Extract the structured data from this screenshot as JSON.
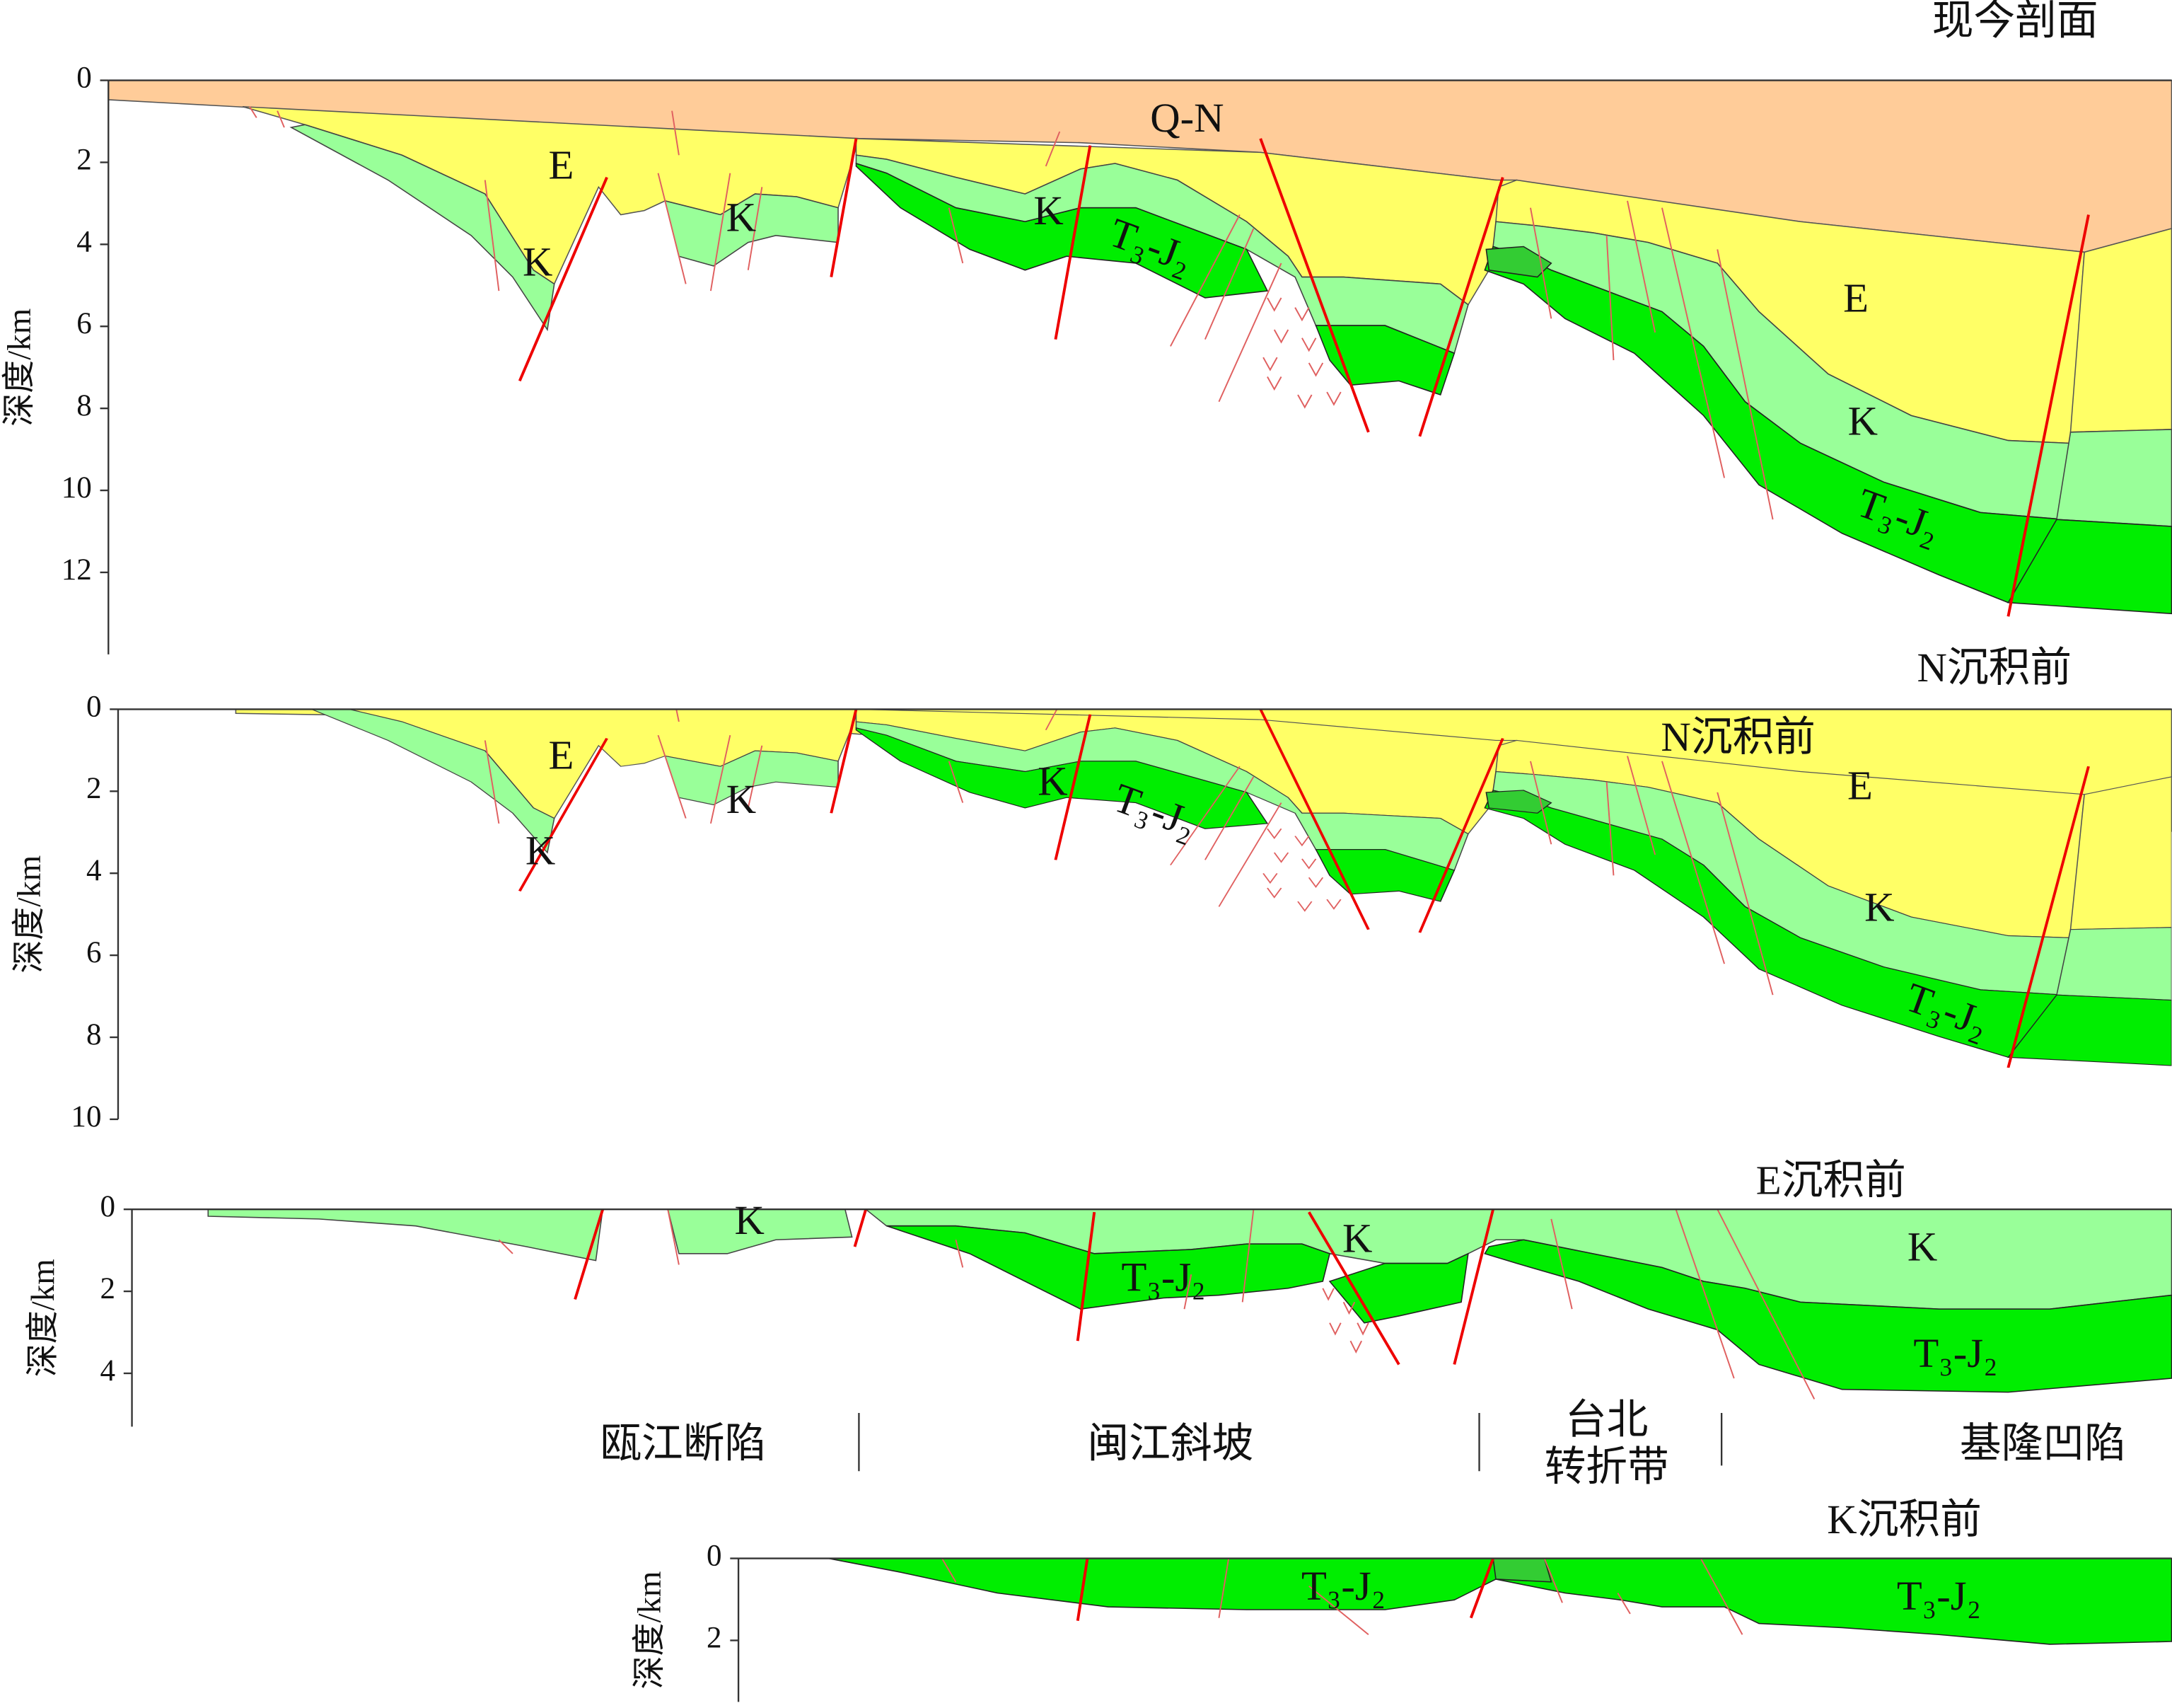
{
  "panels": [
    {
      "title": "现今剖面",
      "y_label": "深度/km",
      "ylim": [
        0,
        14
      ],
      "yticks": [
        0,
        2,
        4,
        6,
        8,
        10,
        12
      ],
      "labels": [
        "Q-N",
        "E",
        "K",
        "K",
        "K",
        "T₃-J₂",
        "E",
        "K",
        "T₃-J₂"
      ]
    },
    {
      "title": "N沉积前",
      "y_label": "深度/km",
      "ylim": [
        0,
        10
      ],
      "yticks": [
        0,
        2,
        4,
        6,
        8,
        10
      ],
      "labels": [
        "E",
        "K",
        "K",
        "K",
        "T₃-J₂",
        "N沉积前",
        "E",
        "K",
        "T₃-J₂"
      ]
    },
    {
      "title": "E沉积前",
      "y_label": "深度/km",
      "ylim": [
        0,
        5.3
      ],
      "yticks": [
        0,
        2,
        4
      ],
      "labels": [
        "K",
        "T₃-J₂",
        "K",
        "K",
        "T₃-J₂"
      ]
    },
    {
      "title": "K沉积前",
      "y_label": "深度/km",
      "ylim": [
        0,
        3.5
      ],
      "yticks": [
        0,
        2
      ],
      "labels": [
        "T₃-J₂",
        "T₃-J₂"
      ]
    }
  ],
  "regions": [
    "瓯江断陷",
    "闽江斜坡",
    "台北",
    "转折带",
    "基隆凹陷"
  ]
}
